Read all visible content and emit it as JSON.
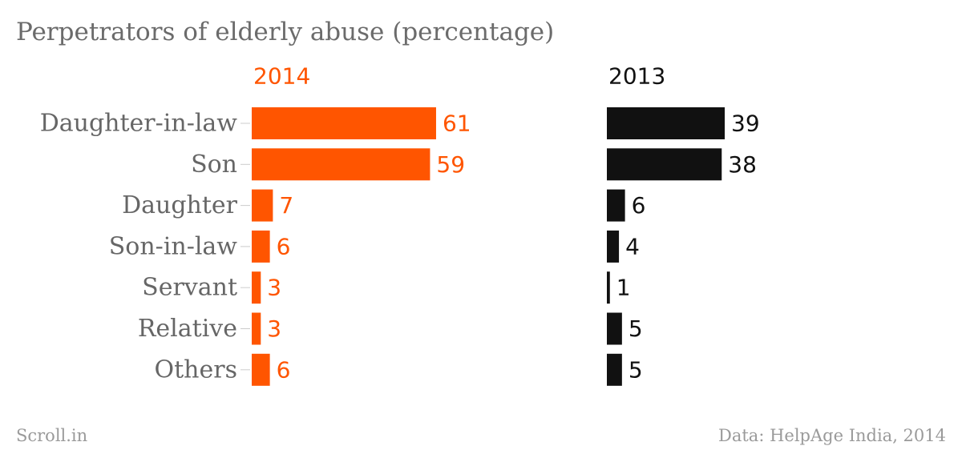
{
  "header": {
    "title": "Perpetrators of elderly abuse (percentage)"
  },
  "footer": {
    "source_left": "Scroll.in",
    "source_right": "Data: HelpAge India, 2014"
  },
  "colors": {
    "series_2014": "#ff5500",
    "series_2013": "#111111",
    "category_label": "#666666",
    "title": "#6b6b6b",
    "footer": "#9a9a9a"
  },
  "chart_data": {
    "type": "bar",
    "orientation": "horizontal",
    "layout": "small-multiples",
    "title": "Perpetrators of elderly abuse (percentage)",
    "categories": [
      "Daughter-in-law",
      "Son",
      "Daughter",
      "Son-in-law",
      "Servant",
      "Relative",
      "Others"
    ],
    "series": [
      {
        "name": "2014",
        "values": [
          61,
          59,
          7,
          6,
          3,
          3,
          6
        ]
      },
      {
        "name": "2013",
        "values": [
          39,
          38,
          6,
          4,
          1,
          5,
          5
        ]
      }
    ],
    "xlim": [
      0,
      61
    ],
    "grid": false,
    "data_labels": true,
    "source": "Data: HelpAge India, 2014"
  }
}
